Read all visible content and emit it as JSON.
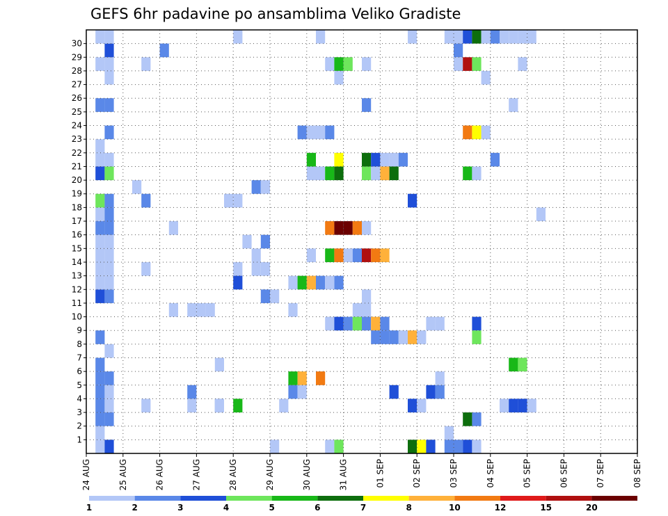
{
  "chart_data": {
    "type": "heatmap",
    "title": "GEFS 6hr padavine po ansamblima Veliko Gradiste",
    "xlabel": "",
    "ylabel": "",
    "x_tick_labels": [
      "24 AUG",
      "25 AUG",
      "26 AUG",
      "27 AUG",
      "28 AUG",
      "29 AUG",
      "30 AUG",
      "31 AUG",
      "01 SEP",
      "02 SEP",
      "03 SEP",
      "04 SEP",
      "05 SEP",
      "06 SEP",
      "07 SEP",
      "08 SEP"
    ],
    "y_tick_labels": [
      "1",
      "2",
      "3",
      "4",
      "5",
      "6",
      "7",
      "8",
      "9",
      "10",
      "11",
      "12",
      "13",
      "14",
      "15",
      "16",
      "17",
      "18",
      "19",
      "20",
      "21",
      "22",
      "23",
      "24",
      "25",
      "26",
      "27",
      "28",
      "29",
      "30"
    ],
    "grid": true,
    "colorbar": {
      "labels": [
        "1",
        "2",
        "3",
        "4",
        "5",
        "6",
        "7",
        "8",
        "10",
        "12",
        "15",
        "20"
      ],
      "colors": [
        "#b3c7f7",
        "#5a88e8",
        "#1f4fd8",
        "#6ee65c",
        "#18b818",
        "#0d6e0d",
        "#ffff00",
        "#ffb13a",
        "#f27a12",
        "#e01a1a",
        "#b01010",
        "#6b0000"
      ]
    },
    "cells": [
      [
        1,
        0,
        1
      ],
      [
        1,
        1,
        1
      ],
      [
        1,
        2,
        2
      ],
      [
        1,
        3,
        2
      ],
      [
        1,
        4,
        2
      ],
      [
        1,
        5,
        2
      ],
      [
        1,
        6,
        2
      ],
      [
        1,
        8,
        2
      ],
      [
        1,
        11,
        3
      ],
      [
        1,
        12,
        1
      ],
      [
        1,
        13,
        1
      ],
      [
        1,
        14,
        1
      ],
      [
        1,
        15,
        1
      ],
      [
        1,
        16,
        2
      ],
      [
        1,
        17,
        1
      ],
      [
        1,
        18,
        4
      ],
      [
        1,
        20,
        3
      ],
      [
        1,
        22,
        1
      ],
      [
        1,
        21,
        1
      ],
      [
        1,
        25,
        2
      ],
      [
        1,
        28,
        1
      ],
      [
        1,
        30,
        1
      ],
      [
        2,
        0,
        3
      ],
      [
        2,
        2,
        2
      ],
      [
        2,
        3,
        1
      ],
      [
        2,
        4,
        1
      ],
      [
        2,
        5,
        2
      ],
      [
        2,
        7,
        1
      ],
      [
        2,
        11,
        2
      ],
      [
        2,
        12,
        1
      ],
      [
        2,
        13,
        1
      ],
      [
        2,
        14,
        1
      ],
      [
        2,
        15,
        1
      ],
      [
        2,
        16,
        2
      ],
      [
        2,
        17,
        2
      ],
      [
        2,
        18,
        2
      ],
      [
        2,
        20,
        4
      ],
      [
        2,
        21,
        1
      ],
      [
        2,
        23,
        2
      ],
      [
        2,
        25,
        2
      ],
      [
        2,
        27,
        1
      ],
      [
        2,
        28,
        1
      ],
      [
        2,
        29,
        3
      ],
      [
        2,
        30,
        1
      ],
      [
        5,
        19,
        1
      ],
      [
        6,
        18,
        2
      ],
      [
        6,
        13,
        1
      ],
      [
        6,
        28,
        1
      ],
      [
        6,
        3,
        1
      ],
      [
        8,
        29,
        2
      ],
      [
        9,
        10,
        1
      ],
      [
        9,
        16,
        1
      ],
      [
        11,
        10,
        1
      ],
      [
        11,
        4,
        2
      ],
      [
        11,
        3,
        1
      ],
      [
        12,
        10,
        1
      ],
      [
        13,
        10,
        1
      ],
      [
        14,
        6,
        1
      ],
      [
        14,
        3,
        2
      ],
      [
        14,
        3,
        1
      ],
      [
        15,
        18,
        1
      ],
      [
        16,
        18,
        1
      ],
      [
        16,
        13,
        1
      ],
      [
        16,
        12,
        3
      ],
      [
        16,
        3,
        5
      ],
      [
        16,
        30,
        1
      ],
      [
        17,
        15,
        1
      ],
      [
        18,
        19,
        2
      ],
      [
        18,
        14,
        1
      ],
      [
        18,
        13,
        1
      ],
      [
        19,
        19,
        1
      ],
      [
        19,
        15,
        2
      ],
      [
        19,
        13,
        1
      ],
      [
        19,
        11,
        2
      ],
      [
        20,
        11,
        1
      ],
      [
        20,
        0,
        1
      ],
      [
        21,
        3,
        1
      ],
      [
        22,
        12,
        1
      ],
      [
        23,
        12,
        5
      ],
      [
        24,
        12,
        8
      ],
      [
        25,
        12,
        2
      ],
      [
        22,
        10,
        1
      ],
      [
        22,
        4,
        2
      ],
      [
        23,
        4,
        1
      ],
      [
        22,
        5,
        5
      ],
      [
        23,
        5,
        8
      ],
      [
        25,
        5,
        9
      ],
      [
        23,
        23,
        2
      ],
      [
        24,
        23,
        1
      ],
      [
        25,
        23,
        1
      ],
      [
        26,
        23,
        2
      ],
      [
        24,
        21,
        5
      ],
      [
        25,
        20,
        1
      ],
      [
        24,
        20,
        1
      ],
      [
        26,
        20,
        5
      ],
      [
        27,
        20,
        6
      ],
      [
        27,
        21,
        7
      ],
      [
        30,
        21,
        6
      ],
      [
        31,
        21,
        3
      ],
      [
        32,
        21,
        1
      ],
      [
        33,
        21,
        1
      ],
      [
        34,
        21,
        2
      ],
      [
        24,
        14,
        1
      ],
      [
        26,
        14,
        5
      ],
      [
        27,
        14,
        9
      ],
      [
        28,
        14,
        1
      ],
      [
        29,
        14,
        2
      ],
      [
        30,
        14,
        11
      ],
      [
        31,
        14,
        9
      ],
      [
        32,
        14,
        8
      ],
      [
        26,
        16,
        9
      ],
      [
        27,
        16,
        12
      ],
      [
        28,
        16,
        12
      ],
      [
        29,
        16,
        9
      ],
      [
        30,
        16,
        1
      ],
      [
        26,
        9,
        1
      ],
      [
        27,
        9,
        3
      ],
      [
        28,
        9,
        2
      ],
      [
        29,
        9,
        4
      ],
      [
        30,
        9,
        2
      ],
      [
        31,
        9,
        8
      ],
      [
        32,
        9,
        2
      ],
      [
        31,
        8,
        2
      ],
      [
        32,
        8,
        2
      ],
      [
        33,
        8,
        2
      ],
      [
        34,
        8,
        1
      ],
      [
        35,
        8,
        8
      ],
      [
        36,
        8,
        1
      ],
      [
        26,
        28,
        1
      ],
      [
        27,
        28,
        5
      ],
      [
        28,
        28,
        4
      ],
      [
        30,
        28,
        1
      ],
      [
        27,
        27,
        1
      ],
      [
        25,
        30,
        1
      ],
      [
        26,
        0,
        1
      ],
      [
        27,
        0,
        4
      ],
      [
        27,
        12,
        2
      ],
      [
        26,
        12,
        1
      ],
      [
        29,
        10,
        1
      ],
      [
        30,
        10,
        1
      ],
      [
        30,
        11,
        1
      ],
      [
        30,
        20,
        4
      ],
      [
        31,
        20,
        1
      ],
      [
        32,
        20,
        8
      ],
      [
        33,
        20,
        6
      ],
      [
        30,
        25,
        2
      ],
      [
        33,
        4,
        3
      ],
      [
        35,
        3,
        3
      ],
      [
        36,
        3,
        1
      ],
      [
        37,
        4,
        3
      ],
      [
        38,
        4,
        2
      ],
      [
        38,
        5,
        1
      ],
      [
        35,
        18,
        3
      ],
      [
        35,
        0,
        6
      ],
      [
        36,
        0,
        7
      ],
      [
        37,
        0,
        3
      ],
      [
        35,
        30,
        1
      ],
      [
        37,
        9,
        1
      ],
      [
        38,
        9,
        1
      ],
      [
        39,
        30,
        1
      ],
      [
        40,
        30,
        1
      ],
      [
        41,
        30,
        3
      ],
      [
        42,
        30,
        6
      ],
      [
        40,
        29,
        2
      ],
      [
        40,
        28,
        1
      ],
      [
        41,
        28,
        11
      ],
      [
        42,
        28,
        4
      ],
      [
        39,
        1,
        1
      ],
      [
        39,
        0,
        2
      ],
      [
        40,
        0,
        2
      ],
      [
        41,
        0,
        3
      ],
      [
        42,
        0,
        1
      ],
      [
        42,
        9,
        3
      ],
      [
        42,
        8,
        4
      ],
      [
        42,
        2,
        2
      ],
      [
        41,
        2,
        6
      ],
      [
        41,
        20,
        5
      ],
      [
        42,
        20,
        1
      ],
      [
        43,
        27,
        1
      ],
      [
        43,
        30,
        1
      ],
      [
        44,
        30,
        2
      ],
      [
        45,
        30,
        1
      ],
      [
        41,
        23,
        9
      ],
      [
        42,
        23,
        7
      ],
      [
        43,
        23,
        1
      ],
      [
        44,
        21,
        2
      ],
      [
        46,
        25,
        1
      ],
      [
        45,
        3,
        1
      ],
      [
        46,
        3,
        3
      ],
      [
        47,
        3,
        3
      ],
      [
        48,
        3,
        1
      ],
      [
        46,
        6,
        5
      ],
      [
        47,
        6,
        4
      ],
      [
        47,
        28,
        1
      ],
      [
        46,
        30,
        1
      ],
      [
        47,
        30,
        1
      ],
      [
        48,
        30,
        1
      ],
      [
        49,
        17,
        1
      ]
    ]
  }
}
